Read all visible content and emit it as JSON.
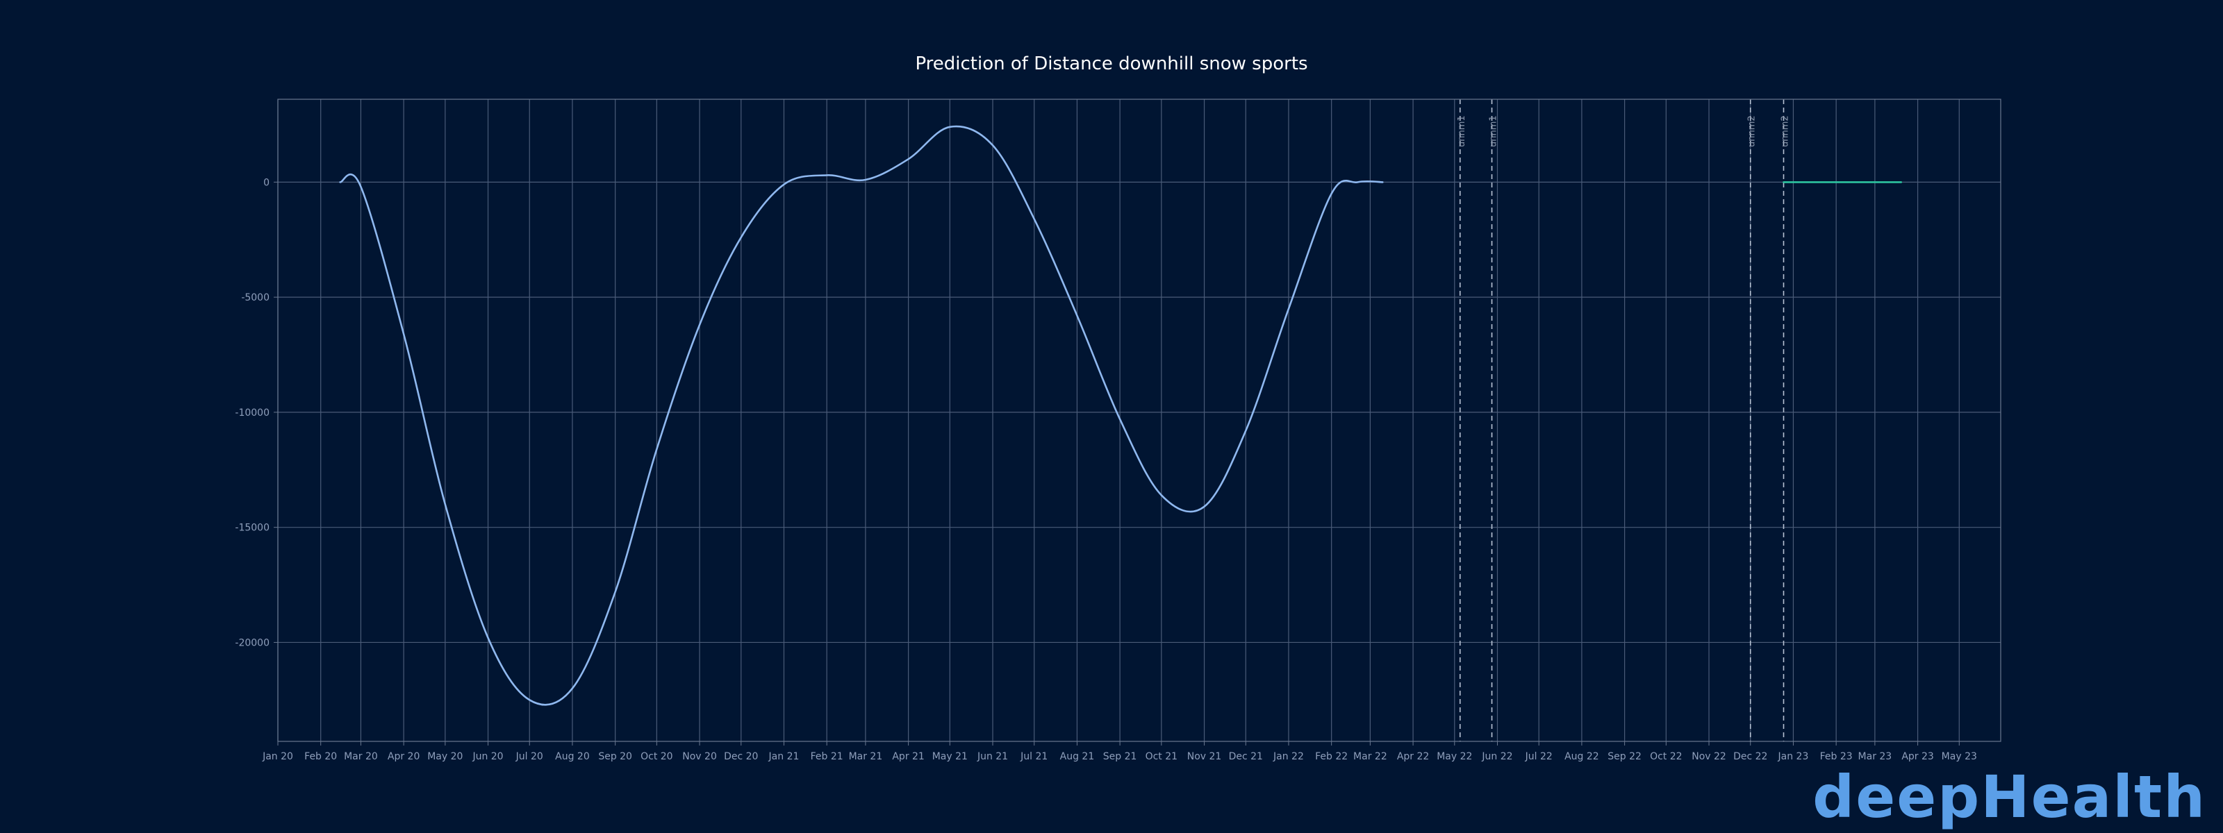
{
  "brand": {
    "logo_text": "deepHealth",
    "logo_color": "#5b9fe8"
  },
  "chart_data": {
    "type": "line",
    "title": "Prediction of Distance downhill snow sports",
    "xlabel": "",
    "ylabel": "",
    "x_axis_type": "date",
    "xlim": [
      "2020-01-01",
      "2023-05-31"
    ],
    "ylim": [
      -24300,
      3600
    ],
    "y_ticks": [
      0,
      -5000,
      -10000,
      -15000,
      -20000
    ],
    "x_ticks": [
      {
        "date": "2020-01-01",
        "label": "Jan 20"
      },
      {
        "date": "2020-02-01",
        "label": "Feb 20"
      },
      {
        "date": "2020-03-01",
        "label": "Mar 20"
      },
      {
        "date": "2020-04-01",
        "label": "Apr 20"
      },
      {
        "date": "2020-05-01",
        "label": "May 20"
      },
      {
        "date": "2020-06-01",
        "label": "Jun 20"
      },
      {
        "date": "2020-07-01",
        "label": "Jul 20"
      },
      {
        "date": "2020-08-01",
        "label": "Aug 20"
      },
      {
        "date": "2020-09-01",
        "label": "Sep 20"
      },
      {
        "date": "2020-10-01",
        "label": "Oct 20"
      },
      {
        "date": "2020-11-01",
        "label": "Nov 20"
      },
      {
        "date": "2020-12-01",
        "label": "Dec 20"
      },
      {
        "date": "2021-01-01",
        "label": "Jan 21"
      },
      {
        "date": "2021-02-01",
        "label": "Feb 21"
      },
      {
        "date": "2021-03-01",
        "label": "Mar 21"
      },
      {
        "date": "2021-04-01",
        "label": "Apr 21"
      },
      {
        "date": "2021-05-01",
        "label": "May 21"
      },
      {
        "date": "2021-06-01",
        "label": "Jun 21"
      },
      {
        "date": "2021-07-01",
        "label": "Jul 21"
      },
      {
        "date": "2021-08-01",
        "label": "Aug 21"
      },
      {
        "date": "2021-09-01",
        "label": "Sep 21"
      },
      {
        "date": "2021-10-01",
        "label": "Oct 21"
      },
      {
        "date": "2021-11-01",
        "label": "Nov 21"
      },
      {
        "date": "2021-12-01",
        "label": "Dec 21"
      },
      {
        "date": "2022-01-01",
        "label": "Jan 22"
      },
      {
        "date": "2022-02-01",
        "label": "Feb 22"
      },
      {
        "date": "2022-03-01",
        "label": "Mar 22"
      },
      {
        "date": "2022-04-01",
        "label": "Apr 22"
      },
      {
        "date": "2022-05-01",
        "label": "May 22"
      },
      {
        "date": "2022-06-01",
        "label": "Jun 22"
      },
      {
        "date": "2022-07-01",
        "label": "Jul 22"
      },
      {
        "date": "2022-08-01",
        "label": "Aug 22"
      },
      {
        "date": "2022-09-01",
        "label": "Sep 22"
      },
      {
        "date": "2022-10-01",
        "label": "Oct 22"
      },
      {
        "date": "2022-11-01",
        "label": "Nov 22"
      },
      {
        "date": "2022-12-01",
        "label": "Dec 22"
      },
      {
        "date": "2023-01-01",
        "label": "Jan 23"
      },
      {
        "date": "2023-02-01",
        "label": "Feb 23"
      },
      {
        "date": "2023-03-01",
        "label": "Mar 23"
      },
      {
        "date": "2023-04-01",
        "label": "Apr 23"
      },
      {
        "date": "2023-05-01",
        "label": "May 23"
      }
    ],
    "grid": true,
    "legend": "none",
    "series": [
      {
        "color": "#8fb8ef",
        "points": [
          {
            "x": "2020-02-15",
            "y": 0
          },
          {
            "x": "2020-03-01",
            "y": -200
          },
          {
            "x": "2020-04-01",
            "y": -6600
          },
          {
            "x": "2020-05-01",
            "y": -14000
          },
          {
            "x": "2020-06-01",
            "y": -19800
          },
          {
            "x": "2020-07-01",
            "y": -22500
          },
          {
            "x": "2020-08-01",
            "y": -22000
          },
          {
            "x": "2020-09-01",
            "y": -17800
          },
          {
            "x": "2020-10-01",
            "y": -11600
          },
          {
            "x": "2020-11-01",
            "y": -6200
          },
          {
            "x": "2020-12-01",
            "y": -2400
          },
          {
            "x": "2021-01-01",
            "y": -100
          },
          {
            "x": "2021-02-01",
            "y": 300
          },
          {
            "x": "2021-03-01",
            "y": 100
          },
          {
            "x": "2021-04-01",
            "y": 1000
          },
          {
            "x": "2021-05-01",
            "y": 2400
          },
          {
            "x": "2021-06-01",
            "y": 1600
          },
          {
            "x": "2021-07-01",
            "y": -1600
          },
          {
            "x": "2021-08-01",
            "y": -5800
          },
          {
            "x": "2021-09-01",
            "y": -10300
          },
          {
            "x": "2021-10-01",
            "y": -13600
          },
          {
            "x": "2021-11-01",
            "y": -14100
          },
          {
            "x": "2021-12-01",
            "y": -10800
          },
          {
            "x": "2022-01-01",
            "y": -5500
          },
          {
            "x": "2022-02-01",
            "y": -500
          },
          {
            "x": "2022-02-20",
            "y": 0
          },
          {
            "x": "2022-03-10",
            "y": 0
          }
        ]
      },
      {
        "color": "#2ec4a0",
        "points": [
          {
            "x": "2022-12-25",
            "y": 0
          },
          {
            "x": "2023-03-20",
            "y": 0
          }
        ]
      }
    ],
    "annotations": [
      {
        "type": "vline",
        "x": "2022-05-05",
        "label": "unnm1",
        "style": "dashed"
      },
      {
        "type": "vline",
        "x": "2022-05-28",
        "label": "unnm1",
        "style": "dashed"
      },
      {
        "type": "vline",
        "x": "2022-12-01",
        "label": "unnm2",
        "style": "dashed"
      },
      {
        "type": "vline",
        "x": "2022-12-25",
        "label": "unnm2",
        "style": "dashed"
      }
    ],
    "colors": {
      "background": "#011532",
      "grid": "#4a5b78",
      "axis": "#6a7890",
      "annotation": "#b8c3d4"
    }
  }
}
